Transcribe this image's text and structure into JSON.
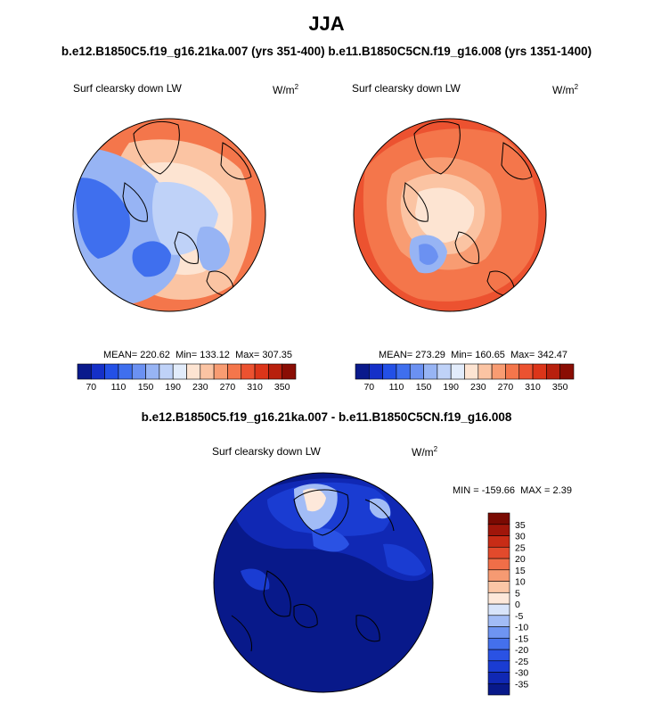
{
  "title": "JJA",
  "subtitle": "b.e12.B1850C5.f19_g16.21ka.007 (yrs 351-400) b.e11.B1850C5CN.f19_g16.008 (yrs 1351-1400)",
  "diff_title": "b.e12.B1850C5.f19_g16.21ka.007 - b.e11.B1850C5CN.f19_g16.008",
  "chart_data": [
    {
      "type": "heatmap",
      "projection": "polar-stereographic-north",
      "variable": "Surf clearsky down LW",
      "units": "W/m",
      "units_exp": "2",
      "stats": {
        "mean_label": "MEAN=",
        "mean": "220.62",
        "min_label": "Min=",
        "min": "133.12",
        "max_label": "Max=",
        "max": "307.35"
      },
      "colorbar": {
        "orientation": "horizontal",
        "levels": [
          70,
          90,
          110,
          130,
          150,
          170,
          190,
          210,
          230,
          250,
          270,
          290,
          310,
          330,
          350
        ],
        "tick_labels": [
          "70",
          "110",
          "150",
          "190",
          "230",
          "270",
          "310",
          "350"
        ],
        "colors": [
          "#0a1a8c",
          "#1530c8",
          "#2350e6",
          "#3f6fee",
          "#6b91f2",
          "#97b4f4",
          "#bfd2f8",
          "#e2ecfb",
          "#fde4d2",
          "#fbc4a3",
          "#f89c72",
          "#f4764b",
          "#ec5230",
          "#dc3519",
          "#b8200d",
          "#8a0d04"
        ]
      }
    },
    {
      "type": "heatmap",
      "projection": "polar-stereographic-north",
      "variable": "Surf clearsky down LW",
      "units": "W/m",
      "units_exp": "2",
      "stats": {
        "mean_label": "MEAN=",
        "mean": "273.29",
        "min_label": "Min=",
        "min": "160.65",
        "max_label": "Max=",
        "max": "342.47"
      },
      "colorbar": {
        "orientation": "horizontal",
        "levels": [
          70,
          90,
          110,
          130,
          150,
          170,
          190,
          210,
          230,
          250,
          270,
          290,
          310,
          330,
          350
        ],
        "tick_labels": [
          "70",
          "110",
          "150",
          "190",
          "230",
          "270",
          "310",
          "350"
        ],
        "colors": [
          "#0a1a8c",
          "#1530c8",
          "#2350e6",
          "#3f6fee",
          "#6b91f2",
          "#97b4f4",
          "#bfd2f8",
          "#e2ecfb",
          "#fde4d2",
          "#fbc4a3",
          "#f89c72",
          "#f4764b",
          "#ec5230",
          "#dc3519",
          "#b8200d",
          "#8a0d04"
        ]
      }
    },
    {
      "type": "heatmap",
      "projection": "polar-stereographic-north",
      "variable": "Surf clearsky down LW",
      "units": "W/m",
      "units_exp": "2",
      "stats": {
        "min_label": "MIN =",
        "min": "-159.66",
        "max_label": "MAX =",
        "max": "2.39"
      },
      "colorbar": {
        "orientation": "vertical",
        "levels": [
          -35,
          -30,
          -25,
          -20,
          -15,
          -10,
          -5,
          0,
          5,
          10,
          15,
          20,
          25,
          30,
          35
        ],
        "tick_labels": [
          "-35",
          "-30",
          "-25",
          "-20",
          "-15",
          "-10",
          "-5",
          "0",
          "5",
          "10",
          "15",
          "20",
          "25",
          "30",
          "35"
        ],
        "colors": [
          "#08198a",
          "#1028b4",
          "#1a3cd2",
          "#2a52e4",
          "#4470ec",
          "#6e94f2",
          "#a2bcf6",
          "#d8e4fa",
          "#fde8da",
          "#fbc6a6",
          "#f69a72",
          "#f06e48",
          "#e24a2c",
          "#c82c16",
          "#a0160a",
          "#7a0a02"
        ]
      }
    }
  ],
  "colors": {
    "land_outline": "#000000",
    "circle_border": "#000000"
  }
}
